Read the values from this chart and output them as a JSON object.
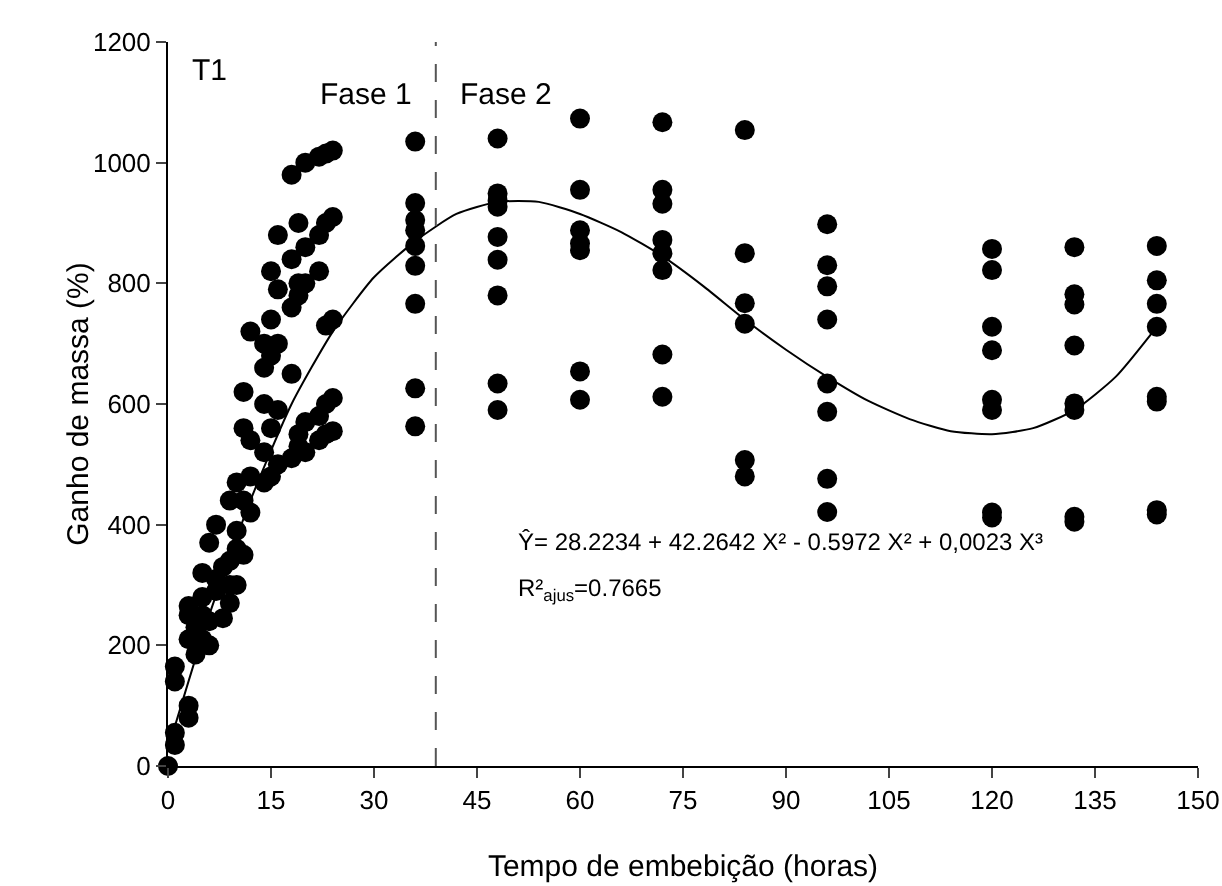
{
  "chart_data": {
    "type": "scatter",
    "xlabel": "Tempo de embebição (horas)",
    "ylabel": "Ganho de massa (%)",
    "xlim": [
      0,
      150
    ],
    "xticks": [
      0,
      15,
      30,
      45,
      60,
      75,
      90,
      105,
      120,
      135,
      150
    ],
    "ylim": [
      0,
      1200
    ],
    "yticks": [
      0,
      200,
      400,
      600,
      800,
      1000,
      1200
    ],
    "grid": false,
    "marker": "circle",
    "series": [
      {
        "type": "scatter",
        "color": "#000000",
        "x": [
          0,
          1,
          1,
          1,
          1,
          3,
          3,
          3,
          3,
          3,
          4,
          4,
          5,
          5,
          5,
          5,
          6,
          6,
          6,
          7,
          7,
          7,
          8,
          8,
          9,
          9,
          9,
          9,
          10,
          10,
          10,
          10,
          11,
          11,
          11,
          11,
          12,
          12,
          12,
          12,
          14,
          14,
          14,
          14,
          14,
          15,
          15,
          15,
          15,
          15,
          16,
          16,
          16,
          16,
          16,
          18,
          18,
          18,
          18,
          18,
          19,
          19,
          19,
          19,
          19,
          20,
          20,
          20,
          20,
          20,
          22,
          22,
          22,
          22,
          22,
          23,
          23,
          23,
          23,
          23,
          24,
          24,
          24,
          24,
          24,
          36,
          36,
          36,
          36,
          36,
          36,
          36,
          36,
          36,
          48,
          48,
          48,
          48,
          48,
          48,
          48,
          48,
          48,
          60,
          60,
          60,
          60,
          60,
          60,
          60,
          72,
          72,
          72,
          72,
          72,
          72,
          72,
          72,
          84,
          84,
          84,
          84,
          84,
          84,
          96,
          96,
          96,
          96,
          96,
          96,
          96,
          96,
          120,
          120,
          120,
          120,
          120,
          120,
          120,
          120,
          132,
          132,
          132,
          132,
          132,
          132,
          132,
          132,
          144,
          144,
          144,
          144,
          144,
          144,
          144,
          144
        ],
        "values": [
          0,
          35,
          55,
          140,
          165,
          80,
          100,
          210,
          250,
          265,
          185,
          230,
          210,
          250,
          280,
          320,
          200,
          240,
          370,
          290,
          310,
          400,
          245,
          330,
          270,
          300,
          340,
          440,
          300,
          360,
          390,
          470,
          350,
          440,
          560,
          620,
          420,
          480,
          540,
          720,
          470,
          520,
          600,
          660,
          700,
          480,
          560,
          680,
          740,
          820,
          500,
          590,
          700,
          790,
          880,
          510,
          650,
          760,
          840,
          980,
          530,
          550,
          780,
          800,
          900,
          520,
          570,
          800,
          860,
          1000,
          540,
          580,
          820,
          880,
          1010,
          550,
          600,
          730,
          900,
          1015,
          555,
          610,
          740,
          910,
          1020,
          1035,
          933,
          905,
          888,
          862,
          829,
          766,
          626,
          563,
          1040,
          949,
          937,
          927,
          877,
          839,
          780,
          634,
          590,
          1073,
          955,
          888,
          866,
          855,
          654,
          607,
          1067,
          955,
          932,
          872,
          850,
          822,
          682,
          612,
          1054,
          850,
          767,
          733,
          507,
          480,
          898,
          830,
          795,
          740,
          634,
          587,
          476,
          421,
          857,
          822,
          728,
          689,
          607,
          590,
          420,
          412,
          860,
          782,
          765,
          697,
          601,
          590,
          413,
          405,
          862,
          805,
          766,
          728,
          612,
          604,
          424,
          417
        ]
      },
      {
        "type": "line",
        "color": "#000000",
        "marker": "none",
        "line_style": "solid",
        "x": [
          0,
          6,
          12,
          18,
          24,
          30,
          36,
          42,
          48,
          54,
          60,
          66,
          72,
          78,
          84,
          90,
          96,
          102,
          108,
          114,
          120,
          126,
          132,
          138,
          144
        ],
        "values": [
          28,
          250,
          440,
          600,
          720,
          810,
          870,
          915,
          935,
          935,
          915,
          885,
          845,
          795,
          740,
          690,
          645,
          605,
          575,
          555,
          550,
          560,
          590,
          645,
          728
        ]
      }
    ],
    "ref_lines": [
      {
        "axis": "x",
        "value": 39,
        "color": "#555555",
        "line_style": "dashed"
      }
    ],
    "annotations": [
      "T1",
      "Fase 1",
      "Fase 2",
      "Ŷ= 28.2234 + 42.2642 X² - 0.5972 X² + 0,0023 X³",
      "R²$_{ajus}$=0.7665"
    ]
  }
}
